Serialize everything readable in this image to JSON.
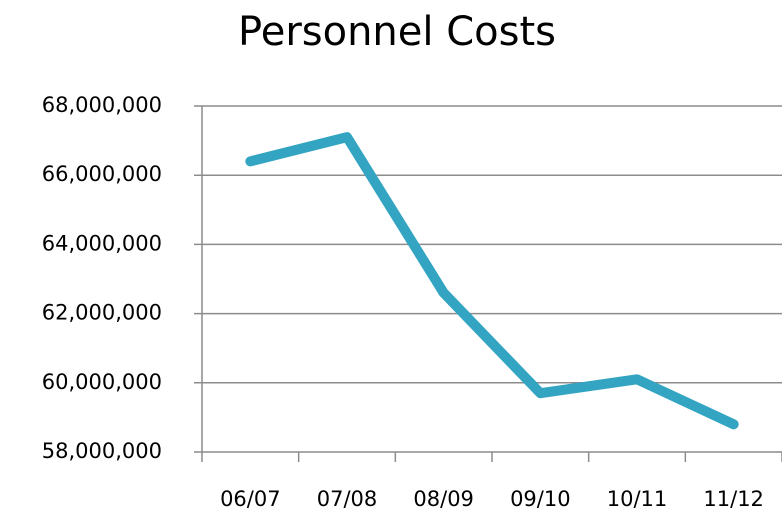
{
  "chart_data": {
    "type": "line",
    "title": "Personnel Costs",
    "categories": [
      "06/07",
      "07/08",
      "08/09",
      "09/10",
      "10/11",
      "11/12"
    ],
    "values": [
      66400000,
      67100000,
      62600000,
      59700000,
      60100000,
      58800000
    ],
    "color": "#33a5c2",
    "ylim": [
      58000000,
      68000000
    ],
    "yticks": [
      {
        "value": 58000000,
        "label": "58,000,000"
      },
      {
        "value": 60000000,
        "label": "60,000,000"
      },
      {
        "value": 62000000,
        "label": "62,000,000"
      },
      {
        "value": 64000000,
        "label": "64,000,000"
      },
      {
        "value": 66000000,
        "label": "66,000,000"
      },
      {
        "value": 68000000,
        "label": "68,000,000"
      }
    ],
    "grid": true
  }
}
